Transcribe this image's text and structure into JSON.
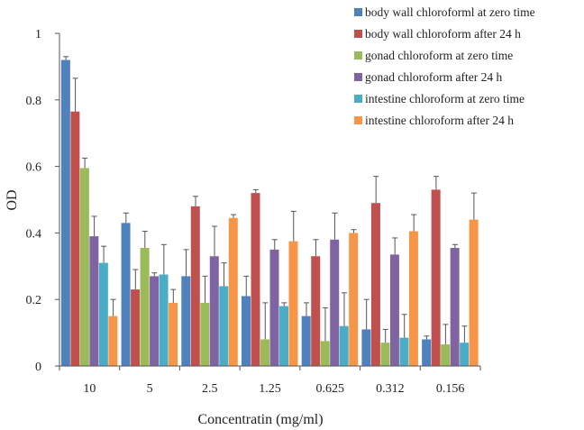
{
  "chart_data": {
    "type": "bar",
    "xlabel": "Concentratin (mg/ml)",
    "ylabel": "OD",
    "ylim": [
      0,
      1
    ],
    "yticks": [
      "0",
      "0.2",
      "0.4",
      "0.6",
      "0.8",
      "1"
    ],
    "categories": [
      "10",
      "5",
      "2.5",
      "1.25",
      "0.625",
      "0.312",
      "0.156"
    ],
    "legend_position": "top-right",
    "grid": false,
    "error_bars": true,
    "series": [
      {
        "name": "body wall chloroforml at zero time",
        "color": "#4F81BD",
        "values": [
          0.92,
          0.43,
          0.27,
          0.21,
          0.15,
          0.11,
          0.08
        ],
        "errors": [
          0.01,
          0.03,
          0.08,
          0.06,
          0.04,
          0.09,
          0.01
        ]
      },
      {
        "name": "body wall  chloroform after 24 h",
        "color": "#C0504D",
        "values": [
          0.765,
          0.23,
          0.48,
          0.52,
          0.33,
          0.49,
          0.53
        ],
        "errors": [
          0.1,
          0.06,
          0.03,
          0.01,
          0.05,
          0.08,
          0.04
        ]
      },
      {
        "name": "gonad chloroform at zero time",
        "color": "#9BBB59",
        "values": [
          0.595,
          0.355,
          0.19,
          0.08,
          0.075,
          0.07,
          0.065
        ],
        "errors": [
          0.03,
          0.05,
          0.08,
          0.11,
          0.1,
          0.04,
          0.06
        ]
      },
      {
        "name": "gonad chloroform after 24 h",
        "color": "#8064A2",
        "values": [
          0.39,
          0.27,
          0.33,
          0.35,
          0.38,
          0.335,
          0.355
        ],
        "errors": [
          0.06,
          0.01,
          0.09,
          0.03,
          0.08,
          0.05,
          0.01
        ]
      },
      {
        "name": "intestine chloroform at zero time",
        "color": "#4BACC6",
        "values": [
          0.31,
          0.275,
          0.24,
          0.18,
          0.12,
          0.085,
          0.07
        ],
        "errors": [
          0.05,
          0.09,
          0.07,
          0.01,
          0.1,
          0.07,
          0.05
        ]
      },
      {
        "name": "intestine chloroform after 24 h",
        "color": "#F79646",
        "values": [
          0.15,
          0.19,
          0.445,
          0.375,
          0.4,
          0.405,
          0.44
        ],
        "errors": [
          0.05,
          0.04,
          0.01,
          0.09,
          0.01,
          0.05,
          0.08
        ]
      }
    ]
  }
}
